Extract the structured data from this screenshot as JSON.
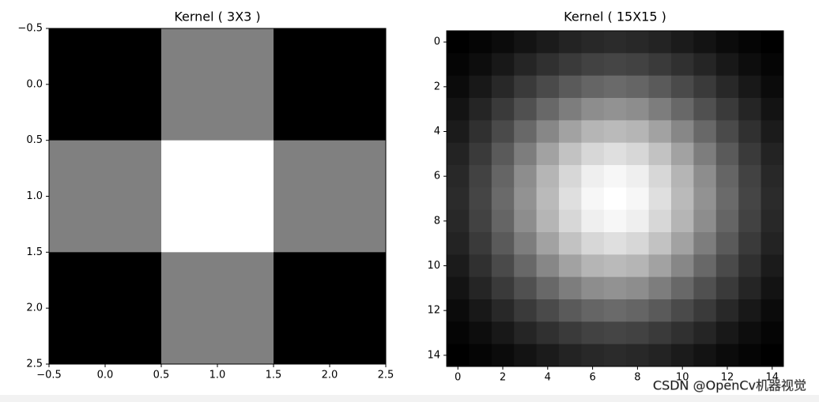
{
  "chart_data": [
    {
      "type": "heatmap",
      "title": "Kernel ( 3X3 )",
      "colormap": "gray",
      "values": [
        [
          0,
          1,
          0
        ],
        [
          1,
          2,
          1
        ],
        [
          0,
          1,
          0
        ]
      ],
      "xlim": [
        -0.5,
        2.5
      ],
      "ylim": [
        2.5,
        -0.5
      ],
      "xticks": [
        {
          "value": -0.5,
          "label": "−0.5"
        },
        {
          "value": 0,
          "label": "0.0"
        },
        {
          "value": 0.5,
          "label": "0.5"
        },
        {
          "value": 1,
          "label": "1.0"
        },
        {
          "value": 1.5,
          "label": "1.5"
        },
        {
          "value": 2,
          "label": "2.0"
        },
        {
          "value": 2.5,
          "label": "2.5"
        }
      ],
      "yticks": [
        {
          "value": -0.5,
          "label": "−0.5"
        },
        {
          "value": 0,
          "label": "0.0"
        },
        {
          "value": 0.5,
          "label": "0.5"
        },
        {
          "value": 1,
          "label": "1.0"
        },
        {
          "value": 1.5,
          "label": "1.5"
        },
        {
          "value": 2,
          "label": "2.0"
        },
        {
          "value": 2.5,
          "label": "2.5"
        }
      ]
    },
    {
      "type": "heatmap",
      "title": "Kernel ( 15X15 )",
      "colormap": "gray",
      "values": [
        [
          4,
          6,
          8,
          11,
          14,
          17,
          19,
          20,
          19,
          17,
          14,
          11,
          8,
          6,
          4
        ],
        [
          6,
          9,
          13,
          18,
          22,
          26,
          29,
          30,
          29,
          26,
          22,
          18,
          13,
          9,
          6
        ],
        [
          8,
          13,
          19,
          26,
          32,
          38,
          42,
          44,
          42,
          38,
          32,
          26,
          19,
          13,
          8
        ],
        [
          11,
          18,
          26,
          34,
          43,
          51,
          57,
          59,
          57,
          51,
          43,
          34,
          26,
          18,
          11
        ],
        [
          14,
          22,
          32,
          43,
          55,
          65,
          72,
          74,
          72,
          65,
          55,
          43,
          32,
          22,
          14
        ],
        [
          17,
          26,
          38,
          51,
          65,
          77,
          85,
          88,
          85,
          77,
          65,
          51,
          38,
          26,
          17
        ],
        [
          19,
          29,
          42,
          57,
          72,
          85,
          94,
          97,
          94,
          85,
          72,
          57,
          42,
          29,
          19
        ],
        [
          20,
          30,
          44,
          59,
          74,
          88,
          97,
          100,
          97,
          88,
          74,
          59,
          44,
          30,
          20
        ],
        [
          19,
          29,
          42,
          57,
          72,
          85,
          94,
          97,
          94,
          85,
          72,
          57,
          42,
          29,
          19
        ],
        [
          17,
          26,
          38,
          51,
          65,
          77,
          85,
          88,
          85,
          77,
          65,
          51,
          38,
          26,
          17
        ],
        [
          14,
          22,
          32,
          43,
          55,
          65,
          72,
          74,
          72,
          65,
          55,
          43,
          32,
          22,
          14
        ],
        [
          11,
          18,
          26,
          34,
          43,
          51,
          57,
          59,
          57,
          51,
          43,
          34,
          26,
          18,
          11
        ],
        [
          8,
          13,
          19,
          26,
          32,
          38,
          42,
          44,
          42,
          38,
          32,
          26,
          19,
          13,
          8
        ],
        [
          6,
          9,
          13,
          18,
          22,
          26,
          29,
          30,
          29,
          26,
          22,
          18,
          13,
          9,
          6
        ],
        [
          4,
          6,
          8,
          11,
          14,
          17,
          19,
          20,
          19,
          17,
          14,
          11,
          8,
          6,
          4
        ]
      ],
      "xlim": [
        -0.5,
        14.5
      ],
      "ylim": [
        14.5,
        -0.5
      ],
      "xticks": [
        0,
        2,
        4,
        6,
        8,
        10,
        12,
        14
      ],
      "yticks": [
        0,
        2,
        4,
        6,
        8,
        10,
        12,
        14
      ]
    }
  ],
  "watermark": "CSDN @OpenCv机器视觉"
}
